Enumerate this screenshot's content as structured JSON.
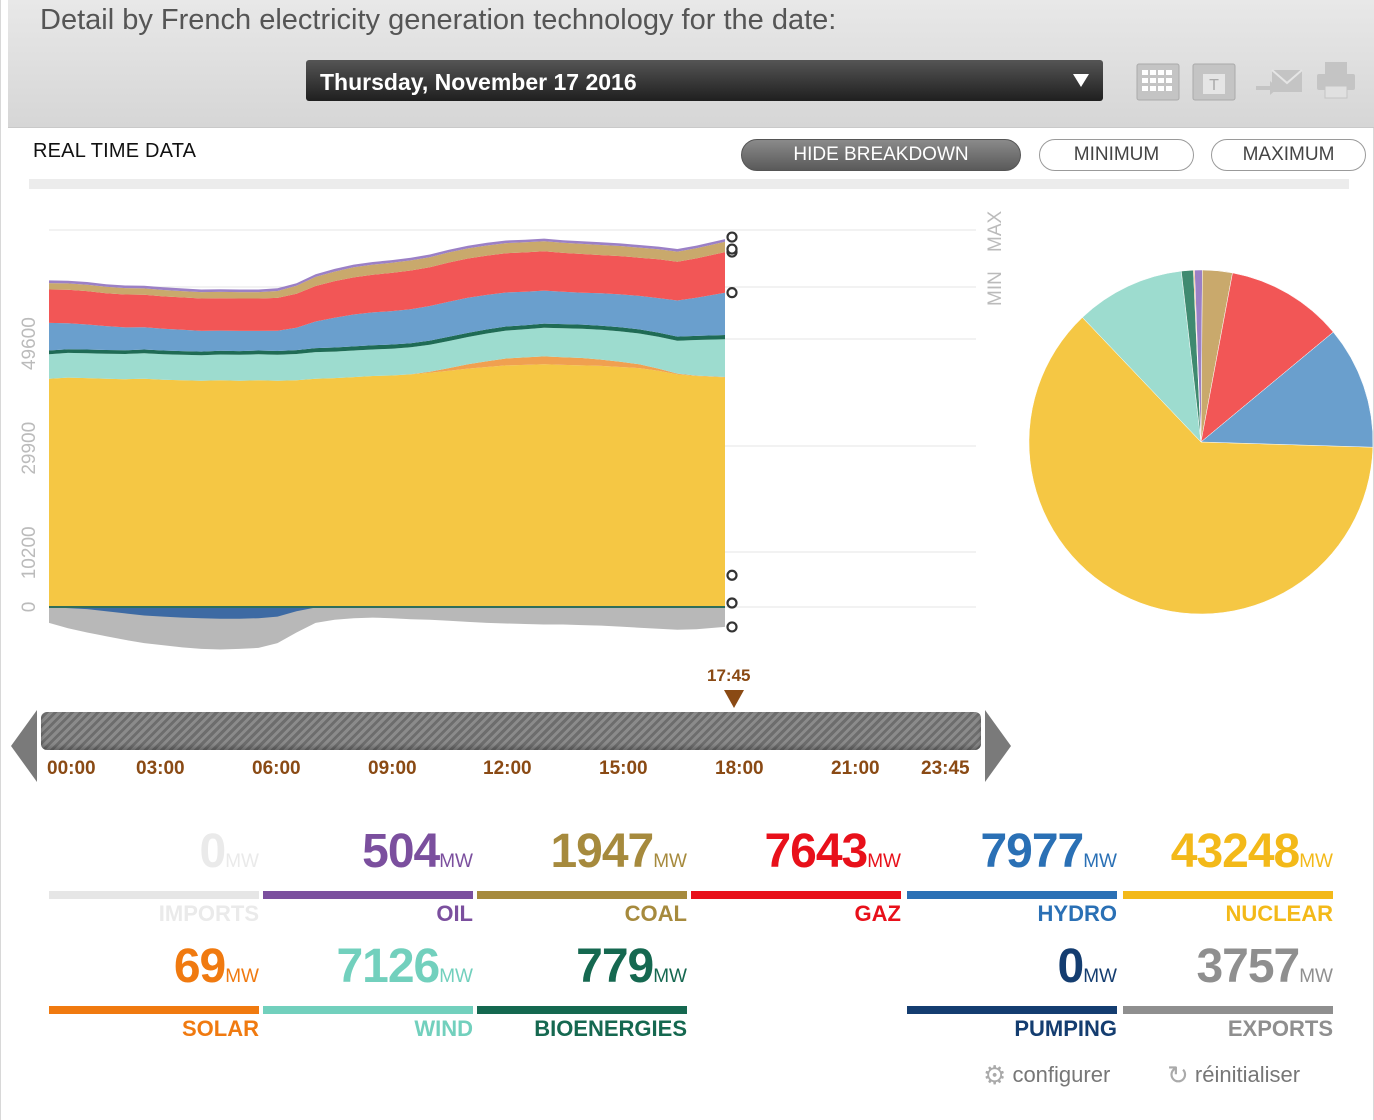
{
  "header": {
    "title": "Detail by French electricity generation technology for the date:",
    "date": "Thursday, November 17 2016",
    "tools": [
      "calendar-icon",
      "day-calendar-icon",
      "email-icon",
      "print-icon"
    ],
    "tool_day_letter": "T"
  },
  "controls": {
    "section_label": "REAL TIME DATA",
    "hide_breakdown": "HIDE BREAKDOWN",
    "minimum": "MINIMUM",
    "maximum": "MAXIMUM",
    "min_marker": "MIN",
    "max_marker": "MAX"
  },
  "chart_data": {
    "type": "area",
    "title": "Detail by French electricity generation technology",
    "ylabel": "MW",
    "yticks": [
      0,
      10200,
      29900,
      49600
    ],
    "ylim": [
      -9000,
      72000
    ],
    "x_hours": [
      0,
      0.5,
      1,
      1.5,
      2,
      2.5,
      3,
      3.5,
      4,
      4.5,
      5,
      5.5,
      6,
      6.5,
      7,
      7.5,
      8,
      8.5,
      9,
      9.5,
      10,
      10.5,
      11,
      11.5,
      12,
      12.5,
      13,
      13.5,
      14,
      14.5,
      15,
      15.5,
      16,
      16.5,
      17,
      17.75
    ],
    "series": [
      {
        "name": "NUCLEAR",
        "color": "#f5c744",
        "values": [
          43000,
          43200,
          43100,
          43000,
          42900,
          43000,
          42800,
          42700,
          42600,
          42700,
          42600,
          42700,
          42600,
          42700,
          43000,
          43100,
          43300,
          43500,
          43600,
          43800,
          44100,
          44500,
          44900,
          45200,
          45500,
          45600,
          45700,
          45600,
          45500,
          45400,
          45200,
          45000,
          44500,
          43800,
          43500,
          43248
        ]
      },
      {
        "name": "SOLAR",
        "color": "#f0a050",
        "values": [
          0,
          0,
          0,
          0,
          0,
          0,
          0,
          0,
          0,
          0,
          0,
          0,
          0,
          0,
          0,
          0,
          0,
          0,
          0,
          50,
          200,
          500,
          800,
          1100,
          1300,
          1400,
          1500,
          1450,
          1400,
          1200,
          1000,
          700,
          400,
          150,
          80,
          69
        ]
      },
      {
        "name": "WIND",
        "color": "#9ddccf",
        "values": [
          4600,
          4650,
          4700,
          4700,
          4750,
          4800,
          4800,
          4800,
          4800,
          4850,
          4900,
          4900,
          4900,
          4950,
          5000,
          5000,
          5000,
          5000,
          5050,
          5050,
          5100,
          5100,
          5150,
          5200,
          5250,
          5300,
          5400,
          5450,
          5500,
          5600,
          5700,
          5800,
          6000,
          6200,
          6700,
          7126
        ]
      },
      {
        "name": "BIOENERGIES",
        "color": "#1f6b55",
        "values": [
          700,
          700,
          700,
          700,
          700,
          700,
          700,
          700,
          700,
          700,
          700,
          700,
          720,
          740,
          760,
          770,
          780,
          780,
          780,
          780,
          780,
          780,
          780,
          780,
          780,
          780,
          780,
          780,
          780,
          780,
          780,
          780,
          780,
          780,
          779,
          779
        ]
      },
      {
        "name": "HYDRO",
        "color": "#6a9fcd",
        "values": [
          5200,
          4900,
          4700,
          4500,
          4300,
          4200,
          4100,
          4000,
          3900,
          3800,
          3800,
          3700,
          3800,
          4200,
          5000,
          5600,
          6000,
          6200,
          6300,
          6400,
          6500,
          6600,
          6600,
          6500,
          6400,
          6300,
          6200,
          6100,
          6000,
          6100,
          6200,
          6300,
          6500,
          6800,
          7200,
          7977
        ]
      },
      {
        "name": "GAZ",
        "color": "#f25656",
        "values": [
          6300,
          6300,
          6300,
          6200,
          6200,
          6100,
          6100,
          6100,
          6100,
          6100,
          6100,
          6100,
          6200,
          6400,
          6700,
          6900,
          7000,
          7100,
          7200,
          7300,
          7300,
          7400,
          7400,
          7400,
          7400,
          7400,
          7400,
          7300,
          7300,
          7200,
          7200,
          7200,
          7300,
          7300,
          7400,
          7643
        ]
      },
      {
        "name": "COAL",
        "color": "#c9a96c",
        "values": [
          1200,
          1200,
          1200,
          1200,
          1200,
          1200,
          1200,
          1200,
          1200,
          1200,
          1200,
          1200,
          1300,
          1500,
          1700,
          1800,
          1900,
          1900,
          1900,
          1900,
          1900,
          1900,
          1900,
          1900,
          1900,
          1900,
          1900,
          1900,
          1900,
          1900,
          1900,
          1900,
          1900,
          1900,
          1900,
          1947
        ]
      },
      {
        "name": "OIL",
        "color": "#9b80c6",
        "values": [
          500,
          500,
          500,
          500,
          500,
          500,
          500,
          500,
          500,
          500,
          500,
          500,
          500,
          500,
          500,
          500,
          500,
          500,
          500,
          500,
          500,
          500,
          500,
          500,
          500,
          500,
          500,
          500,
          500,
          500,
          500,
          500,
          500,
          500,
          500,
          504
        ]
      }
    ],
    "negative_series": [
      {
        "name": "EXPORTS",
        "color": "#b8b8b8",
        "values": [
          3000,
          4000,
          4800,
          5500,
          6200,
          6800,
          7200,
          7600,
          7900,
          8000,
          7900,
          7700,
          6800,
          4800,
          3000,
          2400,
          2100,
          2000,
          2100,
          2300,
          2400,
          2600,
          2800,
          3000,
          3100,
          3200,
          3300,
          3300,
          3400,
          3500,
          3700,
          3900,
          4100,
          4300,
          4200,
          3757
        ]
      },
      {
        "name": "PUMPING",
        "color": "#3d6aa3",
        "values": [
          0,
          200,
          400,
          800,
          1200,
          1600,
          1800,
          2000,
          2100,
          2200,
          2200,
          2100,
          1800,
          800,
          100,
          0,
          0,
          0,
          0,
          0,
          0,
          0,
          0,
          0,
          0,
          0,
          0,
          0,
          0,
          0,
          0,
          0,
          0,
          0,
          0,
          0
        ]
      }
    ],
    "current_time": "17:45",
    "time_ticks": [
      "00:00",
      "03:00",
      "06:00",
      "09:00",
      "12:00",
      "15:00",
      "18:00",
      "21:00",
      "23:45"
    ]
  },
  "pie_data": {
    "type": "pie",
    "slices": [
      {
        "name": "NUCLEAR",
        "value": 43248,
        "color": "#f5c744"
      },
      {
        "name": "HYDRO",
        "value": 7977,
        "color": "#6a9fcd"
      },
      {
        "name": "GAZ",
        "value": 7643,
        "color": "#f25656"
      },
      {
        "name": "COAL",
        "value": 1947,
        "color": "#c9a96c"
      },
      {
        "name": "OIL",
        "value": 504,
        "color": "#9b80c6"
      },
      {
        "name": "BIOENERGIES",
        "value": 779,
        "color": "#3f8a70"
      },
      {
        "name": "SOLAR",
        "value": 69,
        "color": "#f0a050"
      },
      {
        "name": "WIND",
        "value": 7126,
        "color": "#9ddccf"
      }
    ]
  },
  "stats": [
    {
      "name": "IMPORTS",
      "value": "0",
      "unit": "MW",
      "color": "#e6e6e6",
      "text_color": "#eaeaea"
    },
    {
      "name": "OIL",
      "value": "504",
      "unit": "MW",
      "color": "#7b4f9e",
      "text_color": "#7b4f9e"
    },
    {
      "name": "COAL",
      "value": "1947",
      "unit": "MW",
      "color": "#a68a3d",
      "text_color": "#a68a3d"
    },
    {
      "name": "GAZ",
      "value": "7643",
      "unit": "MW",
      "color": "#e8101a",
      "text_color": "#e8101a"
    },
    {
      "name": "HYDRO",
      "value": "7977",
      "unit": "MW",
      "color": "#2a70b5",
      "text_color": "#2a70b5"
    },
    {
      "name": "NUCLEAR",
      "value": "43248",
      "unit": "MW",
      "color": "#f3b919",
      "text_color": "#f3b919"
    },
    {
      "name": "SOLAR",
      "value": "69",
      "unit": "MW",
      "color": "#f07a10",
      "text_color": "#f07a10"
    },
    {
      "name": "WIND",
      "value": "7126",
      "unit": "MW",
      "color": "#72d0bd",
      "text_color": "#72d0bd"
    },
    {
      "name": "BIOENERGIES",
      "value": "779",
      "unit": "MW",
      "color": "#156850",
      "text_color": "#156850"
    },
    {
      "name": "PUMPING",
      "value": "0",
      "unit": "MW",
      "color": "#143d70",
      "text_color": "#143d70"
    },
    {
      "name": "EXPORTS",
      "value": "3757",
      "unit": "MW",
      "color": "#8f8f8f",
      "text_color": "#8f8f8f"
    }
  ],
  "footer": {
    "configure": "configurer",
    "reset": "réinitialiser"
  }
}
